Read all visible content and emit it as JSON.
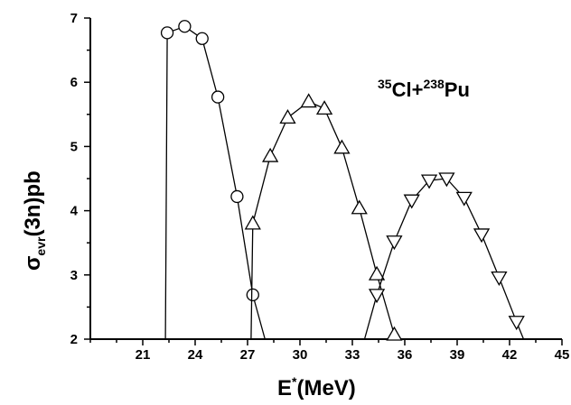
{
  "chart_data": {
    "type": "line",
    "xlim": [
      18,
      45
    ],
    "ylim": [
      2,
      7
    ],
    "x_ticks": [
      21,
      24,
      27,
      30,
      33,
      36,
      39,
      42,
      45
    ],
    "y_ticks": [
      2,
      3,
      4,
      5,
      6,
      7
    ],
    "xlabel": {
      "main": "E",
      "sup": "*",
      "rest": "(MeV)"
    },
    "ylabel": {
      "main": "σ",
      "sub": "evr",
      "rest": "(3n)pb"
    },
    "annotation": {
      "pre1": "35",
      "t1": "Cl+",
      "pre2": "238",
      "t2": "Pu"
    },
    "grid": false,
    "series": [
      {
        "marker": "circle",
        "x": [
          22.3,
          22.4,
          23.4,
          24.4,
          25.3,
          26.4,
          27.3,
          28.0
        ],
        "y": [
          2.0,
          6.77,
          6.87,
          6.68,
          5.77,
          4.22,
          2.69,
          2.0
        ]
      },
      {
        "marker": "triangle-up",
        "x": [
          27.2,
          27.3,
          28.3,
          29.3,
          30.5,
          31.4,
          32.4,
          33.4,
          34.4,
          35.4,
          35.6
        ],
        "y": [
          2.0,
          3.8,
          4.85,
          5.45,
          5.7,
          5.59,
          4.98,
          4.04,
          3.01,
          2.07,
          2.0
        ]
      },
      {
        "marker": "triangle-down",
        "x": [
          33.7,
          34.4,
          35.4,
          36.4,
          37.4,
          38.4,
          39.4,
          40.4,
          41.4,
          42.4,
          42.8
        ],
        "y": [
          2.0,
          2.69,
          3.52,
          4.16,
          4.47,
          4.5,
          4.2,
          3.63,
          2.96,
          2.27,
          2.0
        ]
      }
    ]
  }
}
